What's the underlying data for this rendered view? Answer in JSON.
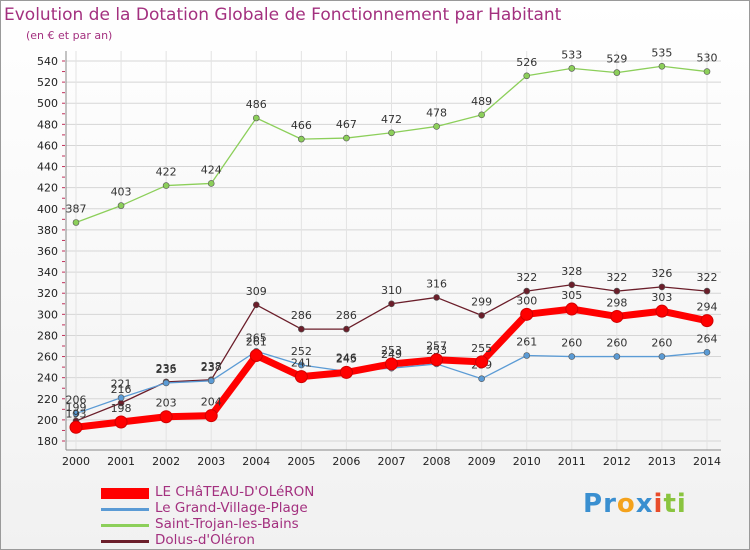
{
  "title": "Evolution de la Dotation Globale de Fonctionnement par Habitant",
  "subtitle": "(en € et par an)",
  "logo": {
    "text": "Proxiti",
    "letters": [
      "P",
      "r",
      "o",
      "x",
      "i",
      "t",
      "i"
    ],
    "colors": [
      "#3a8fd0",
      "#3a8fd0",
      "#f4a21c",
      "#3a8fd0",
      "#e84c2a",
      "#8ac43f",
      "#8ac43f"
    ]
  },
  "chart_data": {
    "type": "line",
    "title": "Evolution de la Dotation Globale de Fonctionnement par Habitant",
    "ylabel": "(en € et par an)",
    "xlabel": "",
    "ylim": [
      180,
      540
    ],
    "yticks": [
      180,
      200,
      220,
      240,
      260,
      280,
      300,
      320,
      340,
      360,
      380,
      400,
      420,
      440,
      460,
      480,
      500,
      520,
      540
    ],
    "x": [
      2000,
      2001,
      2002,
      2003,
      2004,
      2005,
      2006,
      2007,
      2008,
      2009,
      2010,
      2011,
      2012,
      2013,
      2014
    ],
    "grid": true,
    "legend_position": "bottom-left",
    "series": [
      {
        "name": "Saint-Trojan-les-Bains",
        "color": "#8ccf5a",
        "thick": false,
        "values": [
          387,
          403,
          422,
          424,
          486,
          466,
          467,
          472,
          478,
          489,
          526,
          533,
          529,
          535,
          530
        ]
      },
      {
        "name": "Dolus-d'Oléron",
        "color": "#6b1e2a",
        "thick": false,
        "values": [
          199,
          216,
          236,
          238,
          309,
          286,
          286,
          310,
          316,
          299,
          322,
          328,
          322,
          326,
          322
        ]
      },
      {
        "name": "Le Grand-Village-Plage",
        "color": "#5b9bd5",
        "thick": false,
        "values": [
          206,
          221,
          235,
          237,
          265,
          252,
          246,
          249,
          253,
          239,
          261,
          260,
          260,
          260,
          264
        ]
      },
      {
        "name": "LE CHâTEAU-D'OLéRON",
        "color": "#ff0000",
        "thick": true,
        "values": [
          193,
          198,
          203,
          204,
          261,
          241,
          245,
          253,
          257,
          255,
          300,
          305,
          298,
          303,
          294
        ]
      }
    ],
    "legend_order": [
      "LE CHâTEAU-D'OLéRON",
      "Le Grand-Village-Plage",
      "Saint-Trojan-les-Bains",
      "Dolus-d'Oléron"
    ]
  }
}
